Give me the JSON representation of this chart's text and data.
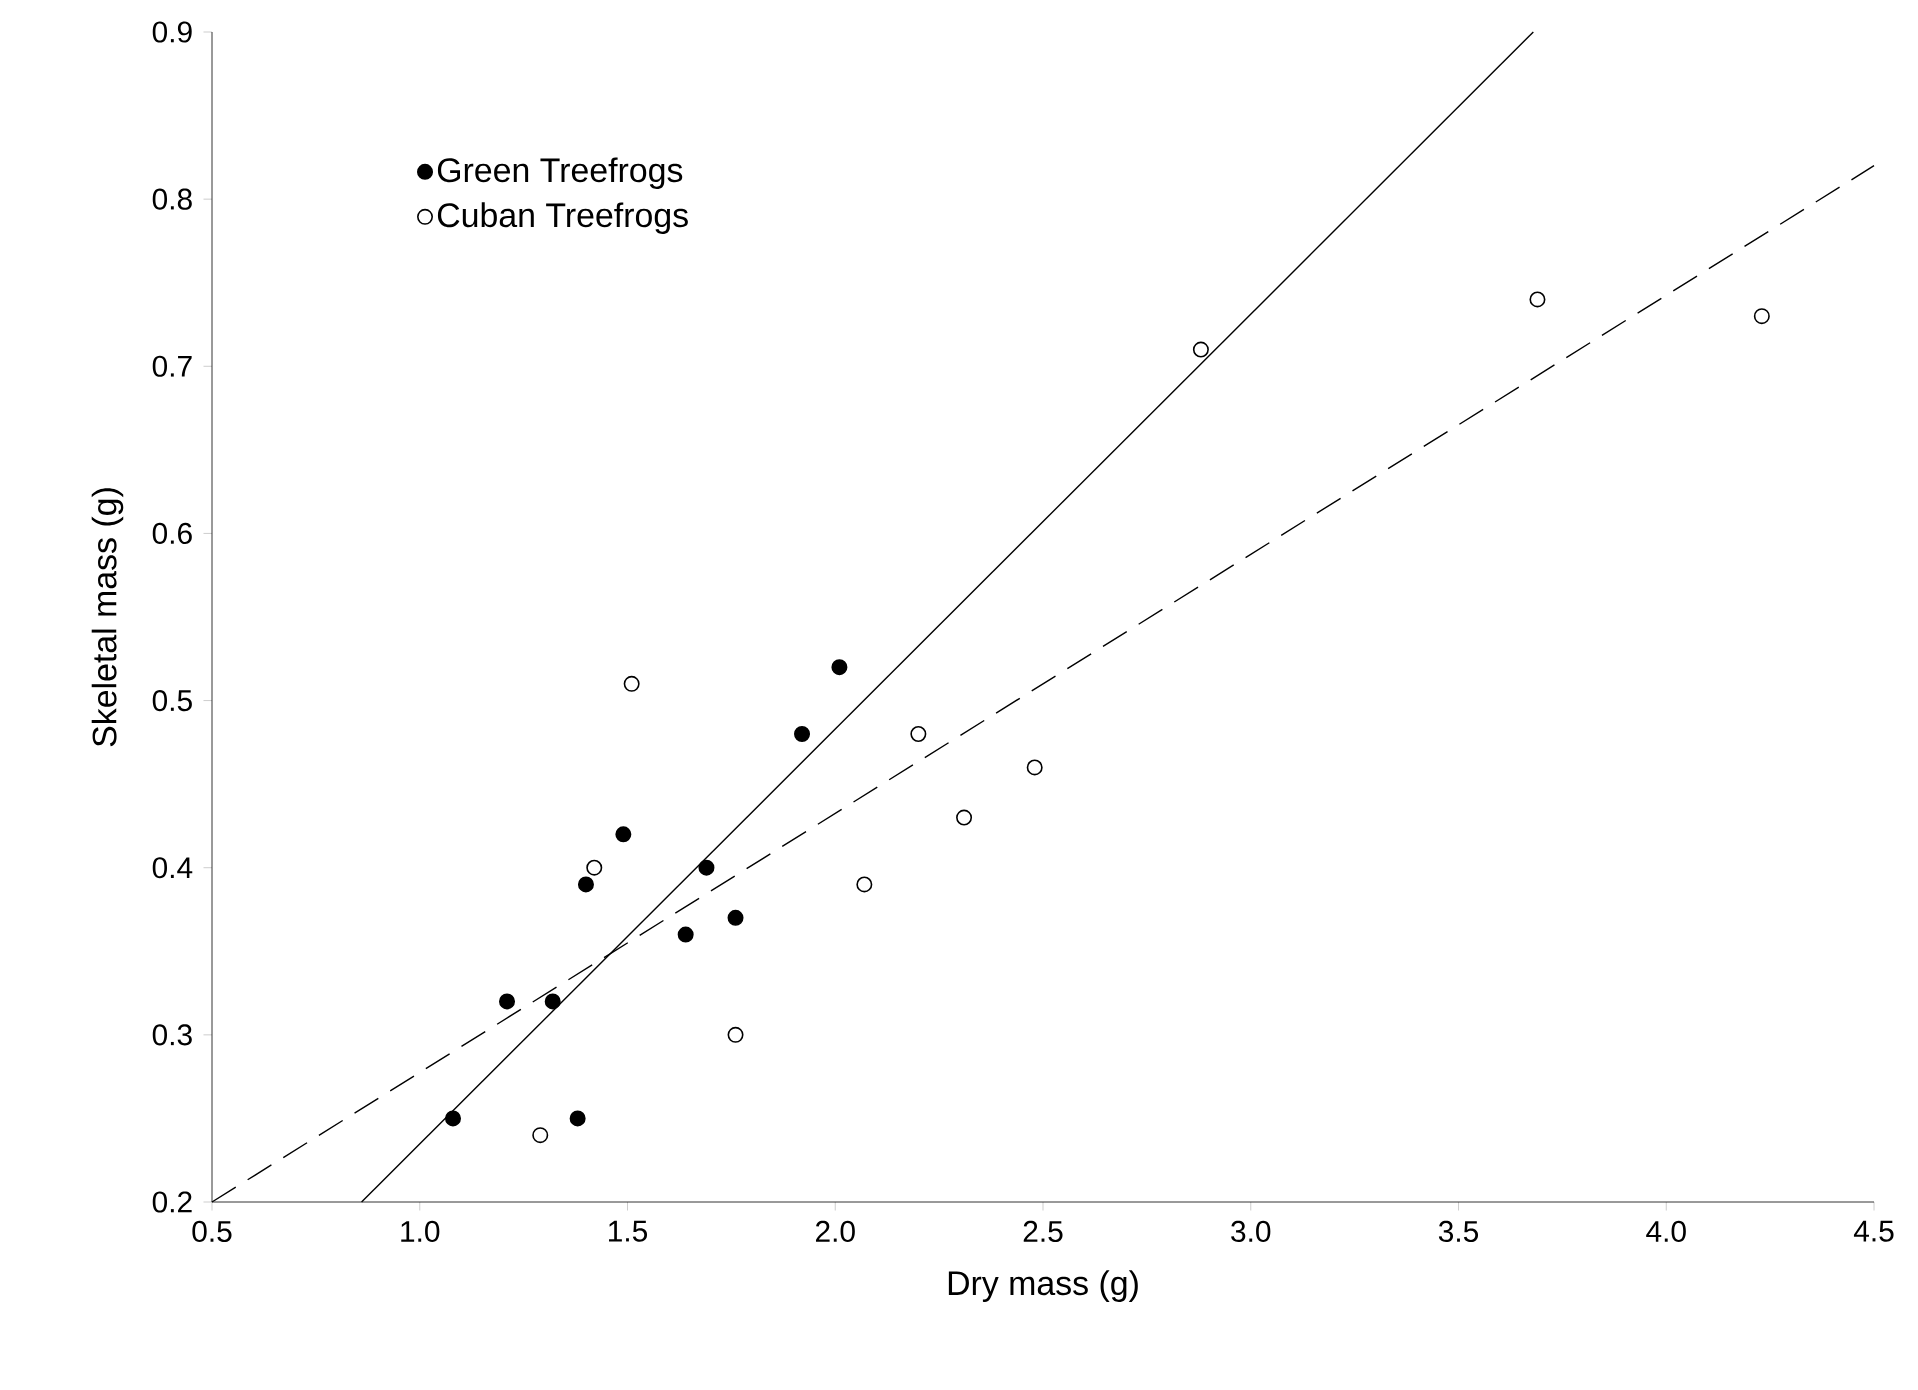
{
  "chart_data": {
    "type": "scatter",
    "xlabel": "Dry mass (g)",
    "ylabel": "Skeletal mass (g)",
    "xlim": [
      0.5,
      4.5
    ],
    "ylim": [
      0.2,
      0.9
    ],
    "xticks": [
      {
        "value": 0.5,
        "label": "0.5"
      },
      {
        "value": 1,
        "label": "1.0"
      },
      {
        "value": 1.5,
        "label": "1.5"
      },
      {
        "value": 2,
        "label": "2.0"
      },
      {
        "value": 2.5,
        "label": "2.5"
      },
      {
        "value": 3,
        "label": "3.0"
      },
      {
        "value": 3.5,
        "label": "3.5"
      },
      {
        "value": 4,
        "label": "4.0"
      },
      {
        "value": 4.5,
        "label": "4.5"
      }
    ],
    "yticks": [
      0.2,
      0.3,
      0.4,
      0.5,
      0.6,
      0.7,
      0.8,
      0.9
    ],
    "grid": false,
    "legend": "top left",
    "series": [
      {
        "name": "Green Treefrogs",
        "color": "#000000",
        "marker": "circle",
        "x": [
          1.08,
          1.21,
          1.32,
          1.38,
          1.4,
          1.49,
          1.64,
          1.69,
          1.76,
          1.92,
          2.01
        ],
        "values": [
          0.25,
          0.32,
          0.32,
          0.25,
          0.39,
          0.42,
          0.36,
          0.4,
          0.37,
          0.48,
          0.52
        ]
      },
      {
        "name": "Cuban Treefrogs",
        "color": "#ffffff",
        "marker": "circle",
        "x": [
          1.29,
          1.42,
          1.51,
          1.76,
          2.07,
          2.2,
          2.31,
          2.48,
          2.88,
          3.69,
          4.23
        ],
        "values": [
          0.24,
          0.4,
          0.51,
          0.3,
          0.39,
          0.48,
          0.43,
          0.46,
          0.71,
          0.74,
          0.73
        ]
      },
      {
        "type": "line",
        "color": "#000000",
        "line_style": "solid",
        "marker": "none",
        "x": [
          0.86,
          3.68
        ],
        "values": [
          0.2,
          0.9
        ]
      },
      {
        "type": "line",
        "color": "#000000",
        "line_style": "dashed",
        "marker": "none",
        "x": [
          0.5,
          4.5
        ],
        "values": [
          0.2,
          0.82
        ]
      }
    ]
  }
}
